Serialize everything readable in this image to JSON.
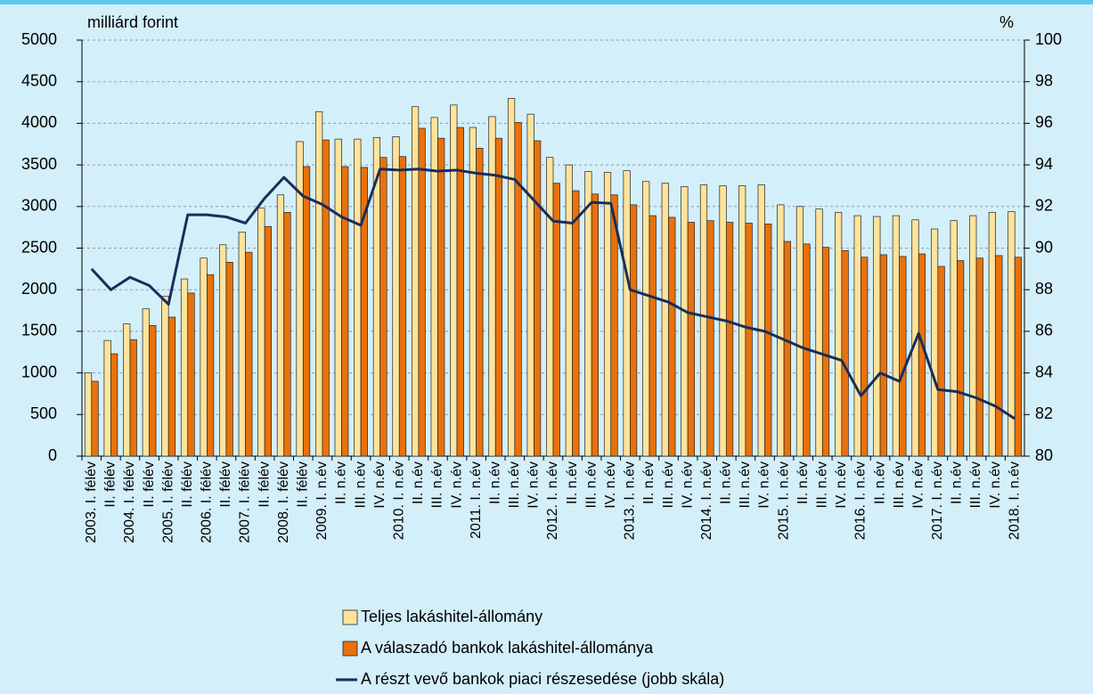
{
  "chart_data": {
    "type": "bar-line",
    "ylabel": "milliárd forint",
    "y2label": "%",
    "categories": [
      "2003. I. félév",
      "II. félév",
      "2004. I. félév",
      "II. félév",
      "2005. I. félév",
      "II. félév",
      "2006. I. félév",
      "II. félév",
      "2007. I. félév",
      "II. félév",
      "2008. I. félév",
      "II. félév",
      "2009. I. n.év",
      "II. n.év",
      "III. n.év",
      "IV. n.év",
      "2010. I. n.év",
      "II. n.év",
      "III. n.év",
      "IV. n.év",
      "2011. I. n.év",
      "II. n.év",
      "III. n.év",
      "IV. n.év",
      "2012. I. n.év",
      "II. n.év",
      "III. n.év",
      "IV. n.év",
      "2013. I. n.év",
      "II. n.év",
      "III. n.év",
      "IV. n.év",
      "2014. I. n.év",
      "II. n.év",
      "III. n.év",
      "IV. n.év",
      "2015. I. n.év",
      "II. n.év",
      "III. n.év",
      "IV. n.év",
      "2016. I. n.év",
      "II. n.év",
      "III. n.év",
      "IV. n.év",
      "2017. I. n.év",
      "II. n.év",
      "III. n.év",
      "IV. n.év",
      "2018. I. n.év"
    ],
    "series": [
      {
        "name": "Teljes lakáshitel-állomány",
        "color": "#ffe39b",
        "kind": "bar",
        "values": [
          1000,
          1390,
          1590,
          1770,
          1920,
          2130,
          2380,
          2540,
          2690,
          2980,
          3140,
          3780,
          4140,
          3810,
          3810,
          3830,
          3840,
          4200,
          4070,
          4220,
          3950,
          4080,
          4300,
          4110,
          3590,
          3500,
          3420,
          3410,
          3430,
          3300,
          3280,
          3240,
          3260,
          3250,
          3250,
          3260,
          3020,
          3000,
          2970,
          2930,
          2890,
          2880,
          2890,
          2840,
          2730,
          2830,
          2890,
          2930,
          2940
        ]
      },
      {
        "name": "A válaszadó bankok lakáshitel-állománya",
        "color": "#e8720c",
        "kind": "bar",
        "values": [
          900,
          1230,
          1400,
          1570,
          1670,
          1960,
          2180,
          2330,
          2450,
          2760,
          2930,
          3480,
          3800,
          3480,
          3470,
          3590,
          3600,
          3940,
          3820,
          3950,
          3700,
          3820,
          4010,
          3790,
          3280,
          3190,
          3150,
          3140,
          3020,
          2890,
          2870,
          2810,
          2830,
          2810,
          2800,
          2790,
          2580,
          2550,
          2510,
          2470,
          2390,
          2420,
          2400,
          2430,
          2280,
          2350,
          2380,
          2410,
          2390
        ]
      },
      {
        "name": "A részt vevő bankok piaci részesedése (jobb skála)",
        "color": "#1a2d5a",
        "kind": "line",
        "axis": "y2",
        "values": [
          89.0,
          88.0,
          88.6,
          88.2,
          87.3,
          91.6,
          91.6,
          91.5,
          91.2,
          92.4,
          93.4,
          92.5,
          92.1,
          91.5,
          91.1,
          93.8,
          93.75,
          93.8,
          93.7,
          93.75,
          93.6,
          93.5,
          93.3,
          92.3,
          91.3,
          91.2,
          92.2,
          92.15,
          88.0,
          87.7,
          87.4,
          86.9,
          86.7,
          86.5,
          86.2,
          86.0,
          85.6,
          85.2,
          84.9,
          84.6,
          82.9,
          84.0,
          83.6,
          85.9,
          83.2,
          83.1,
          82.8,
          82.4,
          81.8
        ]
      }
    ],
    "ylim": [
      0,
      5000
    ],
    "yticks": [
      0,
      500,
      1000,
      1500,
      2000,
      2500,
      3000,
      3500,
      4000,
      4500,
      5000
    ],
    "y2lim": [
      80,
      100
    ],
    "y2ticks": [
      80,
      82,
      84,
      86,
      88,
      90,
      92,
      94,
      96,
      98,
      100
    ],
    "grid": true
  }
}
